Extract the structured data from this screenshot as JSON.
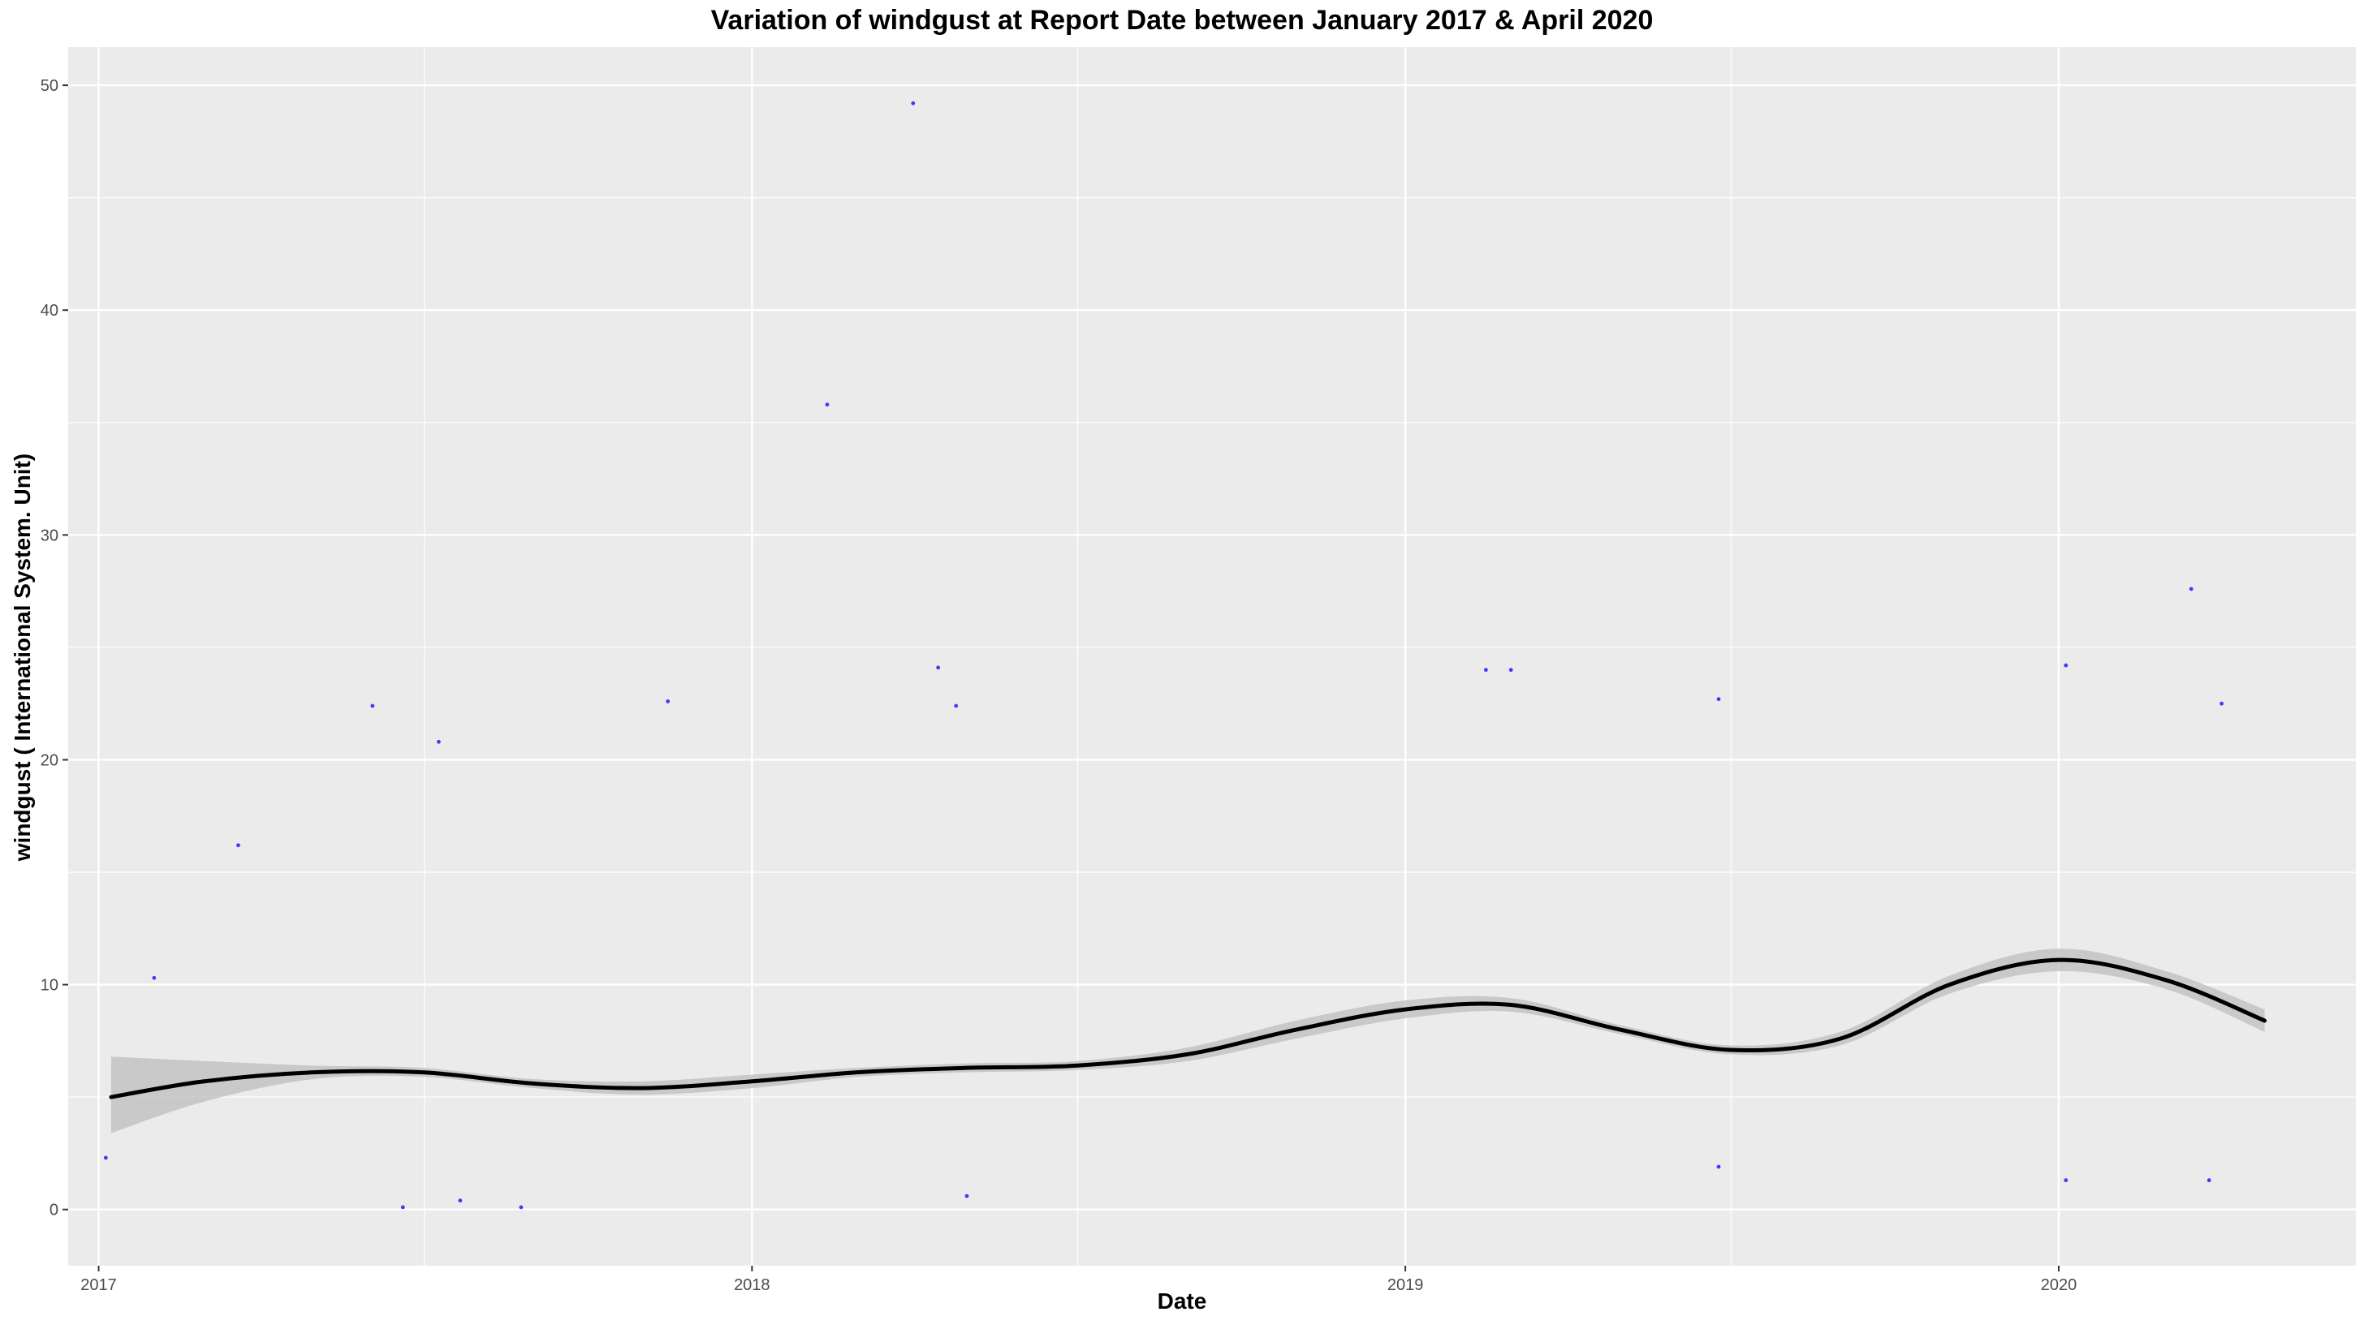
{
  "chart_data": {
    "type": "scatter",
    "title": "Variation of  windgust  at Report Date between January 2017 & April 2020",
    "xlabel": "Date",
    "ylabel": "windgust ( International System. Unit)",
    "x_ticks": [
      "2017",
      "2018",
      "2019",
      "2020"
    ],
    "y_ticks": [
      0,
      10,
      20,
      30,
      40,
      50
    ],
    "xlim": [
      "2016-12-15",
      "2020-06-15"
    ],
    "ylim": [
      -2.5,
      51.7
    ],
    "grid": true,
    "legend": "none",
    "colors": {
      "panel": "#ebebeb",
      "grid_major": "#ffffff",
      "points": "#0000ff",
      "smooth_line": "#000000",
      "confidence_band": "#bdbdbd"
    },
    "series": [
      {
        "type": "scatter",
        "values": [
          {
            "x": "2017-01-05",
            "y": 2.3
          },
          {
            "x": "2017-02-01",
            "y": 10.3
          },
          {
            "x": "2017-03-20",
            "y": 16.2
          },
          {
            "x": "2017-06-03",
            "y": 22.4
          },
          {
            "x": "2017-06-20",
            "y": 0.1
          },
          {
            "x": "2017-07-10",
            "y": 20.8
          },
          {
            "x": "2017-07-22",
            "y": 0.4
          },
          {
            "x": "2017-08-25",
            "y": 0.1
          },
          {
            "x": "2017-11-15",
            "y": 22.6
          },
          {
            "x": "2018-02-12",
            "y": 35.8
          },
          {
            "x": "2018-04-01",
            "y": 49.2
          },
          {
            "x": "2018-04-15",
            "y": 24.1
          },
          {
            "x": "2018-04-25",
            "y": 22.4
          },
          {
            "x": "2018-05-01",
            "y": 0.6
          },
          {
            "x": "2019-02-15",
            "y": 24.0
          },
          {
            "x": "2019-03-01",
            "y": 24.0
          },
          {
            "x": "2019-06-25",
            "y": 22.7
          },
          {
            "x": "2019-06-25",
            "y": 1.9
          },
          {
            "x": "2020-01-05",
            "y": 24.2
          },
          {
            "x": "2020-01-05",
            "y": 1.3
          },
          {
            "x": "2020-03-15",
            "y": 27.6
          },
          {
            "x": "2020-04-01",
            "y": 22.5
          },
          {
            "x": "2020-03-25",
            "y": 1.3
          }
        ]
      },
      {
        "type": "line",
        "values": [
          {
            "x": "2017-01-08",
            "y": 5.0
          },
          {
            "x": "2017-03-01",
            "y": 5.7
          },
          {
            "x": "2017-05-01",
            "y": 6.1
          },
          {
            "x": "2017-07-01",
            "y": 6.1
          },
          {
            "x": "2017-09-01",
            "y": 5.6
          },
          {
            "x": "2017-11-01",
            "y": 5.4
          },
          {
            "x": "2018-01-01",
            "y": 5.7
          },
          {
            "x": "2018-03-01",
            "y": 6.1
          },
          {
            "x": "2018-05-01",
            "y": 6.3
          },
          {
            "x": "2018-07-01",
            "y": 6.4
          },
          {
            "x": "2018-09-01",
            "y": 6.9
          },
          {
            "x": "2018-11-01",
            "y": 8.0
          },
          {
            "x": "2019-01-01",
            "y": 8.9
          },
          {
            "x": "2019-03-01",
            "y": 9.1
          },
          {
            "x": "2019-05-01",
            "y": 8.0
          },
          {
            "x": "2019-07-01",
            "y": 7.1
          },
          {
            "x": "2019-09-01",
            "y": 7.6
          },
          {
            "x": "2019-11-01",
            "y": 10.0
          },
          {
            "x": "2020-01-01",
            "y": 11.1
          },
          {
            "x": "2020-03-01",
            "y": 10.2
          },
          {
            "x": "2020-04-25",
            "y": 8.4
          }
        ],
        "confidence_band": [
          {
            "x": "2017-01-08",
            "low": 3.4,
            "high": 6.8
          },
          {
            "x": "2017-03-01",
            "low": 4.8,
            "high": 6.6
          },
          {
            "x": "2017-05-01",
            "low": 5.8,
            "high": 6.4
          },
          {
            "x": "2017-07-01",
            "low": 5.9,
            "high": 6.3
          },
          {
            "x": "2017-09-01",
            "low": 5.4,
            "high": 5.8
          },
          {
            "x": "2017-11-01",
            "low": 5.1,
            "high": 5.7
          },
          {
            "x": "2018-01-01",
            "low": 5.4,
            "high": 6.0
          },
          {
            "x": "2018-03-01",
            "low": 5.9,
            "high": 6.3
          },
          {
            "x": "2018-05-01",
            "low": 6.1,
            "high": 6.5
          },
          {
            "x": "2018-07-01",
            "low": 6.2,
            "high": 6.6
          },
          {
            "x": "2018-09-01",
            "low": 6.6,
            "high": 7.2
          },
          {
            "x": "2018-11-01",
            "low": 7.6,
            "high": 8.4
          },
          {
            "x": "2019-01-01",
            "low": 8.5,
            "high": 9.3
          },
          {
            "x": "2019-03-01",
            "low": 8.8,
            "high": 9.4
          },
          {
            "x": "2019-05-01",
            "low": 7.8,
            "high": 8.2
          },
          {
            "x": "2019-07-01",
            "low": 6.9,
            "high": 7.3
          },
          {
            "x": "2019-09-01",
            "low": 7.3,
            "high": 7.9
          },
          {
            "x": "2019-11-01",
            "low": 9.6,
            "high": 10.4
          },
          {
            "x": "2020-01-01",
            "low": 10.6,
            "high": 11.6
          },
          {
            "x": "2020-03-01",
            "low": 9.8,
            "high": 10.6
          },
          {
            "x": "2020-04-25",
            "low": 7.9,
            "high": 8.9
          }
        ]
      }
    ]
  }
}
